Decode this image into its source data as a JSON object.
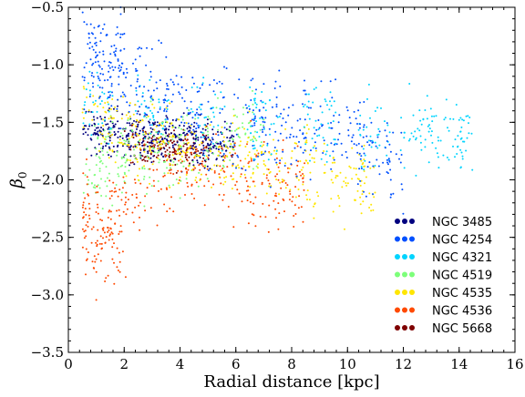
{
  "chart_data": {
    "type": "scatter",
    "title": "",
    "xlabel": "Radial distance [kpc]",
    "ylabel": "β",
    "ylabel_subscript": "0",
    "xlim": [
      0,
      16
    ],
    "ylim": [
      -3.5,
      -0.5
    ],
    "xticks": [
      0,
      2,
      4,
      6,
      8,
      10,
      12,
      14,
      16
    ],
    "xtick_labels": [
      "0",
      "2",
      "4",
      "6",
      "8",
      "10",
      "12",
      "14",
      "16"
    ],
    "yticks": [
      -3.5,
      -3.0,
      -2.5,
      -2.0,
      -1.5,
      -1.0,
      -0.5
    ],
    "ytick_labels": [
      "−3.5",
      "−3.0",
      "−2.5",
      "−2.0",
      "−1.5",
      "−1.0",
      "−0.5"
    ],
    "grid": false,
    "legend_position": "lower-right",
    "series": [
      {
        "name": "NGC 3485",
        "color": "#00007f",
        "x_range": [
          0.5,
          6.0
        ],
        "y_center": -1.62,
        "y_spread": 0.12,
        "points": [
          [
            0.8,
            -1.6
          ],
          [
            1.2,
            -1.55
          ],
          [
            1.6,
            -1.65
          ],
          [
            2.0,
            -1.58
          ],
          [
            2.5,
            -1.7
          ],
          [
            3.0,
            -1.62
          ],
          [
            3.5,
            -1.66
          ],
          [
            4.0,
            -1.6
          ],
          [
            4.5,
            -1.72
          ],
          [
            5.0,
            -1.65
          ],
          [
            5.5,
            -1.68
          ]
        ]
      },
      {
        "name": "NGC 4254",
        "color": "#0050ff",
        "x_range": [
          0.5,
          12.0
        ],
        "y_center": -1.45,
        "y_spread": 0.25,
        "points": [
          [
            0.6,
            -0.9
          ],
          [
            1.0,
            -1.0
          ],
          [
            1.5,
            -0.95
          ],
          [
            2.0,
            -1.1
          ],
          [
            3.0,
            -1.2
          ],
          [
            4.0,
            -1.3
          ],
          [
            5.0,
            -1.4
          ],
          [
            6.0,
            -1.45
          ],
          [
            7.0,
            -1.5
          ],
          [
            8.0,
            -1.55
          ],
          [
            9.0,
            -1.6
          ],
          [
            10.0,
            -1.65
          ],
          [
            11.0,
            -1.75
          ],
          [
            12.0,
            -1.9
          ]
        ]
      },
      {
        "name": "NGC 4321",
        "color": "#00d4ff",
        "x_range": [
          0.5,
          14.5
        ],
        "y_center": -1.55,
        "y_spread": 0.2,
        "points": [
          [
            1.0,
            -1.3
          ],
          [
            3.0,
            -1.4
          ],
          [
            5.0,
            -1.45
          ],
          [
            7.0,
            -1.5
          ],
          [
            9.0,
            -1.55
          ],
          [
            11.0,
            -1.6
          ],
          [
            12.5,
            -1.55
          ],
          [
            13.5,
            -1.6
          ],
          [
            14.5,
            -1.62
          ]
        ]
      },
      {
        "name": "NGC 4519",
        "color": "#7dff7a",
        "x_range": [
          0.5,
          7.0
        ],
        "y_center": -1.85,
        "y_spread": 0.2,
        "points": [
          [
            0.8,
            -1.9
          ],
          [
            1.5,
            -1.85
          ],
          [
            2.5,
            -1.8
          ],
          [
            3.5,
            -1.75
          ],
          [
            4.5,
            -1.7
          ],
          [
            5.5,
            -1.6
          ],
          [
            6.5,
            -1.55
          ]
        ]
      },
      {
        "name": "NGC 4535",
        "color": "#ffe600",
        "x_range": [
          0.5,
          11.0
        ],
        "y_center": -1.75,
        "y_spread": 0.2,
        "points": [
          [
            1.0,
            -1.5
          ],
          [
            2.0,
            -1.6
          ],
          [
            3.0,
            -1.65
          ],
          [
            4.0,
            -1.7
          ],
          [
            5.0,
            -1.75
          ],
          [
            6.0,
            -1.8
          ],
          [
            7.0,
            -1.85
          ],
          [
            8.0,
            -1.9
          ],
          [
            9.0,
            -1.95
          ],
          [
            10.0,
            -2.0
          ],
          [
            10.8,
            -2.05
          ]
        ]
      },
      {
        "name": "NGC 4536",
        "color": "#ff4a00",
        "x_range": [
          0.5,
          8.5
        ],
        "y_center": -1.9,
        "y_spread": 0.25,
        "points": [
          [
            0.5,
            -2.3
          ],
          [
            1.0,
            -2.5
          ],
          [
            1.5,
            -2.6
          ],
          [
            2.0,
            -2.2
          ],
          [
            3.0,
            -2.0
          ],
          [
            4.0,
            -1.9
          ],
          [
            5.0,
            -1.85
          ],
          [
            6.0,
            -1.95
          ],
          [
            7.0,
            -2.0
          ],
          [
            8.0,
            -2.05
          ]
        ]
      },
      {
        "name": "NGC 5668",
        "color": "#7f0000",
        "x_range": [
          2.0,
          5.0
        ],
        "y_center": -1.7,
        "y_spread": 0.1,
        "points": [
          [
            2.2,
            -1.65
          ],
          [
            2.8,
            -1.7
          ],
          [
            3.4,
            -1.72
          ],
          [
            4.0,
            -1.75
          ],
          [
            4.6,
            -1.7
          ]
        ]
      }
    ]
  }
}
